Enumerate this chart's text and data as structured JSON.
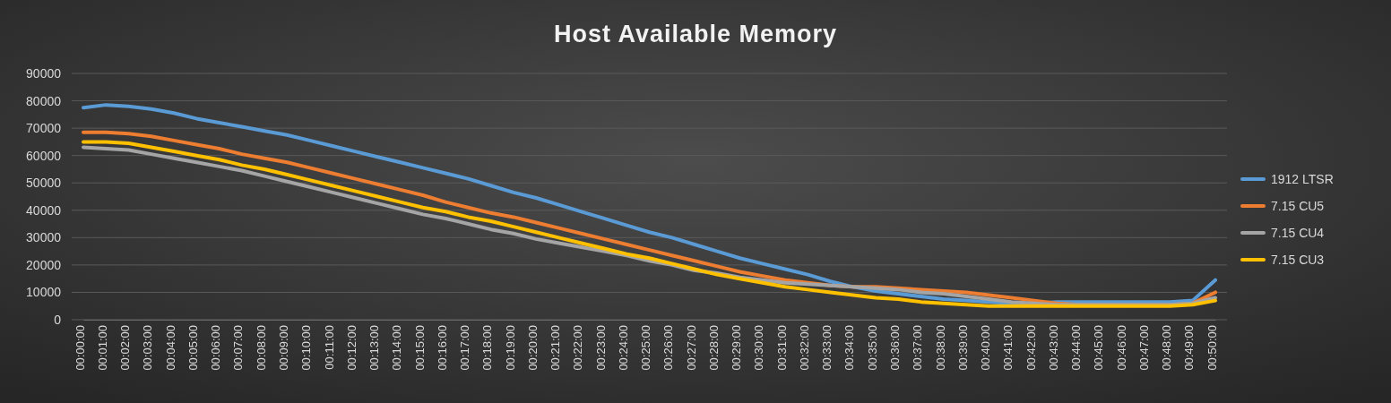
{
  "chart_data": {
    "type": "line",
    "title": "Host Available Memory",
    "categories": [
      "00:00:00",
      "00:01:00",
      "00:02:00",
      "00:03:00",
      "00:04:00",
      "00:05:00",
      "00:06:00",
      "00:07:00",
      "00:08:00",
      "00:09:00",
      "00:10:00",
      "00:11:00",
      "00:12:00",
      "00:13:00",
      "00:14:00",
      "00:15:00",
      "00:16:00",
      "00:17:00",
      "00:18:00",
      "00:19:00",
      "00:20:00",
      "00:21:00",
      "00:22:00",
      "00:23:00",
      "00:24:00",
      "00:25:00",
      "00:26:00",
      "00:27:00",
      "00:28:00",
      "00:29:00",
      "00:30:00",
      "00:31:00",
      "00:32:00",
      "00:33:00",
      "00:34:00",
      "00:35:00",
      "00:36:00",
      "00:37:00",
      "00:38:00",
      "00:39:00",
      "00:40:00",
      "00:41:00",
      "00:42:00",
      "00:43:00",
      "00:44:00",
      "00:45:00",
      "00:46:00",
      "00:47:00",
      "00:48:00",
      "00:49:00",
      "00:50:00"
    ],
    "series": [
      {
        "name": "1912 LTSR",
        "color": "#5b9bd5",
        "values": [
          77500,
          78500,
          78000,
          77000,
          75500,
          73500,
          72000,
          70500,
          69000,
          67500,
          65500,
          63500,
          61500,
          59500,
          57500,
          55500,
          53500,
          51500,
          49000,
          46500,
          44500,
          42000,
          39500,
          37000,
          34500,
          32000,
          30000,
          27500,
          25000,
          22500,
          20500,
          18500,
          16500,
          14000,
          12000,
          10500,
          9500,
          8500,
          7500,
          7000,
          6500,
          6000,
          6000,
          6500,
          6500,
          6500,
          6500,
          6500,
          6500,
          7000,
          14500
        ]
      },
      {
        "name": "7.15 CU5",
        "color": "#ed7d31",
        "values": [
          68500,
          68500,
          68000,
          67000,
          65500,
          64000,
          62500,
          60500,
          59000,
          57500,
          55500,
          53500,
          51500,
          49500,
          47500,
          45500,
          43000,
          41000,
          39000,
          37500,
          35500,
          33500,
          31500,
          29500,
          27500,
          25500,
          23500,
          21500,
          19500,
          17500,
          16000,
          14500,
          13500,
          12500,
          12000,
          12000,
          11500,
          11000,
          10500,
          10000,
          9000,
          8000,
          7000,
          6000,
          5500,
          5500,
          5500,
          5500,
          5500,
          6000,
          10000
        ]
      },
      {
        "name": "7.15 CU4",
        "color": "#a5a5a5",
        "values": [
          63000,
          62500,
          62000,
          60500,
          59000,
          57500,
          56000,
          54500,
          52500,
          50500,
          48500,
          46500,
          44500,
          42500,
          40500,
          38500,
          37000,
          35000,
          33000,
          31500,
          29500,
          28000,
          26500,
          25000,
          23500,
          21500,
          20000,
          18000,
          17000,
          15500,
          14500,
          13500,
          13000,
          12500,
          12000,
          11500,
          11000,
          10000,
          9500,
          8500,
          7500,
          6500,
          6000,
          5500,
          5500,
          5500,
          5500,
          5500,
          5500,
          6000,
          8000
        ]
      },
      {
        "name": "7.15 CU3",
        "color": "#ffc000",
        "values": [
          65000,
          65000,
          64500,
          63000,
          61500,
          60000,
          58500,
          56500,
          55000,
          53000,
          51000,
          49000,
          47000,
          45000,
          43000,
          41000,
          39500,
          37500,
          36000,
          34000,
          32000,
          30000,
          28000,
          26000,
          24000,
          22500,
          20500,
          18500,
          16500,
          15000,
          13500,
          12000,
          11000,
          10000,
          9000,
          8000,
          7500,
          6500,
          6000,
          5500,
          5000,
          5000,
          5000,
          5000,
          5000,
          5000,
          5000,
          5000,
          5000,
          5500,
          7000
        ]
      }
    ],
    "ylim": [
      0,
      90000
    ],
    "yticks": [
      0,
      10000,
      20000,
      30000,
      40000,
      50000,
      60000,
      70000,
      80000,
      90000
    ],
    "grid": "y",
    "legend": "right",
    "marker": "none",
    "line_style": "solid"
  }
}
